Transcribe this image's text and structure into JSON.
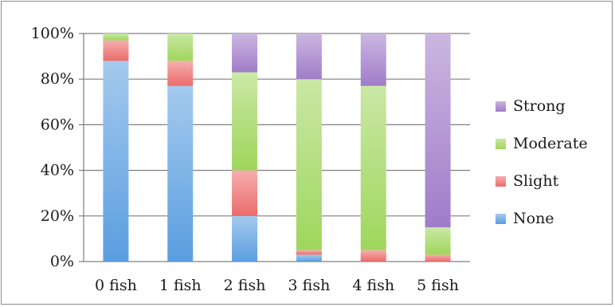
{
  "chart_data": {
    "type": "bar",
    "stacked": true,
    "percent": true,
    "categories": [
      "0 fish",
      "1 fish",
      "2 fish",
      "3 fish",
      "4 fish",
      "5 fish"
    ],
    "ylim": [
      0,
      100
    ],
    "yticks": [
      "0%",
      "20%",
      "40%",
      "60%",
      "80%",
      "100%"
    ],
    "grid": true,
    "legend_position": "right",
    "series": [
      {
        "name": "None",
        "color": "#5a9ee0",
        "values": [
          88,
          77,
          20,
          3,
          0,
          0
        ]
      },
      {
        "name": "Slight",
        "color": "#ec6b6b",
        "values": [
          9,
          11,
          20,
          2,
          5,
          3
        ]
      },
      {
        "name": "Moderate",
        "color": "#9fd65c",
        "values": [
          3,
          12,
          43,
          75,
          72,
          12
        ]
      },
      {
        "name": "Strong",
        "color": "#a07cc8",
        "values": [
          0,
          0,
          17,
          20,
          23,
          85
        ]
      }
    ],
    "legend_order": [
      "Strong",
      "Moderate",
      "Slight",
      "None"
    ]
  }
}
